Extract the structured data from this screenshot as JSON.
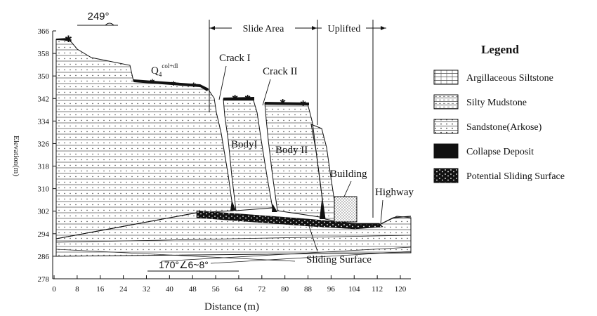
{
  "figure": {
    "y_axis_label": "Elevation(m)",
    "x_axis_label": "Distance (m)",
    "x_ticks": [
      "0",
      "8",
      "16",
      "24",
      "32",
      "40",
      "48",
      "56",
      "64",
      "72",
      "80",
      "88",
      "96",
      "104",
      "112",
      "120"
    ],
    "y_ticks": [
      "366",
      "358",
      "350",
      "342",
      "334",
      "326",
      "318",
      "310",
      "302",
      "294",
      "286",
      "278"
    ],
    "strike_top": "249°",
    "orientation_label": "170°∠6~8°",
    "deposit_label": {
      "main": "Q",
      "sub": "4",
      "sup": "col+dl"
    },
    "zones": {
      "slide_area": "Slide Area",
      "uplifted": "Uplifted"
    },
    "labels": {
      "crack1": "Crack I",
      "crack2": "Crack  II",
      "body1": "BodyI",
      "body2": "Body II",
      "building": "Building",
      "highway": "Highway",
      "sliding_surface": "Sliding Surface"
    }
  },
  "legend": {
    "title": "Legend",
    "items": [
      {
        "label": "Argillaceous Siltstone",
        "pattern": "argillaceous"
      },
      {
        "label": "Silty Mudstone",
        "pattern": "silty"
      },
      {
        "label": "Sandstone(Arkose)",
        "pattern": "sandstone"
      },
      {
        "label": "Collapse Deposit",
        "pattern": "collapse"
      },
      {
        "label": "Potential Sliding Surface",
        "pattern": "potential"
      }
    ]
  },
  "colors": {
    "ink": "#111111",
    "background": "#ffffff"
  }
}
